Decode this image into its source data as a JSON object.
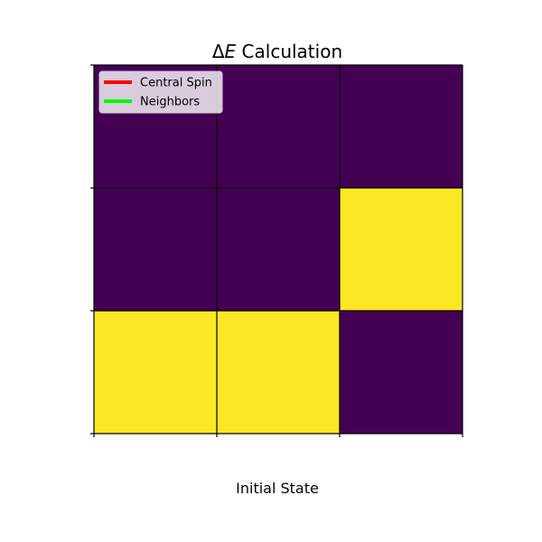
{
  "chart_data": {
    "type": "heatmap",
    "title_prefix": "Δ",
    "title_symbol": "E",
    "title_suffix": " Calculation",
    "xlabel": "Initial State",
    "ylabel": "",
    "rows": 3,
    "cols": 3,
    "values": [
      [
        0,
        0,
        0
      ],
      [
        0,
        0,
        1
      ],
      [
        1,
        1,
        0
      ]
    ],
    "colormap": {
      "0": "#440154",
      "1": "#fde725"
    },
    "grid": true,
    "grid_color": "#000000",
    "tick_labels_shown": false,
    "legend": {
      "placement": "upper-left",
      "entries": [
        {
          "label": "Central Spin",
          "color": "#ff0000"
        },
        {
          "label": "Neighbors",
          "color": "#00ff00"
        }
      ]
    }
  }
}
